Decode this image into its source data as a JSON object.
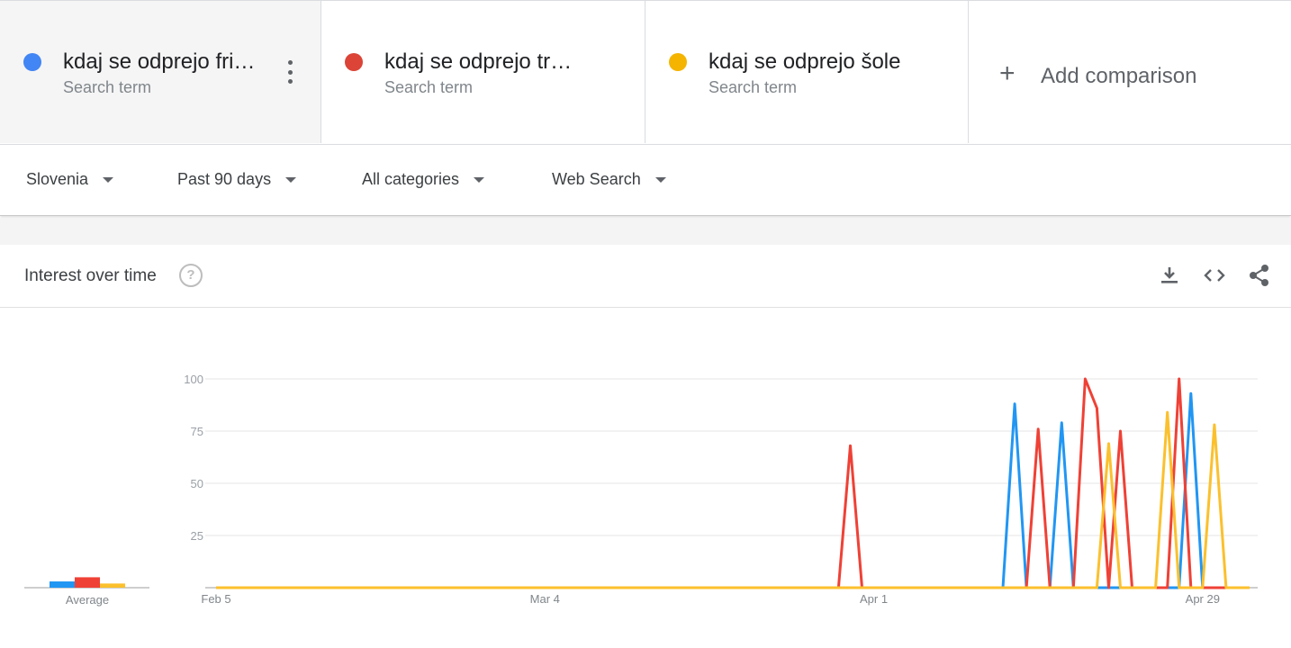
{
  "terms": [
    {
      "label": "kdaj se odprejo frizerji",
      "display": "kdaj se odprejo fri…",
      "sub": "Search term",
      "color": "#4285f4"
    },
    {
      "label": "kdaj se odprejo trgovine",
      "display": "kdaj se odprejo trg…",
      "sub": "Search term",
      "color": "#db4437"
    },
    {
      "label": "kdaj se odprejo šole",
      "display": "kdaj se odprejo šole",
      "sub": "Search term",
      "color": "#f4b400"
    }
  ],
  "add_comparison": "Add comparison",
  "filters": {
    "region": "Slovenia",
    "period": "Past 90 days",
    "category": "All categories",
    "search_type": "Web Search"
  },
  "panel": {
    "title": "Interest over time",
    "help_symbol": "?"
  },
  "icons": [
    "download-icon",
    "embed-code-icon",
    "share-icon",
    "help-icon",
    "more-vert-icon",
    "plus-icon"
  ],
  "chart_data": {
    "type": "line",
    "x_start": "2020-02-05",
    "x_end": "2020-05-03",
    "x_tick_labels": [
      "Feb 5",
      "Mar 4",
      "Apr 1",
      "Apr 29"
    ],
    "y_tick_labels": [
      "100",
      "75",
      "50",
      "25"
    ],
    "ylim": [
      0,
      100
    ],
    "grid": true,
    "average_label": "Average",
    "series": [
      {
        "color": "#2196f3",
        "average": 3,
        "values": {
          "2020-04-12": 0,
          "2020-04-13": 88,
          "2020-04-14": 0,
          "2020-04-15": 0,
          "2020-04-16": 0,
          "2020-04-17": 79,
          "2020-04-18": 0,
          "2020-04-27": 0,
          "2020-04-28": 93,
          "2020-04-29": 0
        }
      },
      {
        "color": "#ef4136",
        "average": 5,
        "values": {
          "2020-03-29": 0,
          "2020-03-30": 68,
          "2020-03-31": 0,
          "2020-04-14": 0,
          "2020-04-15": 76,
          "2020-04-16": 0,
          "2020-04-17": 0,
          "2020-04-18": 0,
          "2020-04-19": 100,
          "2020-04-20": 86,
          "2020-04-21": 0,
          "2020-04-22": 75,
          "2020-04-23": 0,
          "2020-04-25": 0,
          "2020-04-26": 0,
          "2020-04-27": 100,
          "2020-04-28": 0
        }
      },
      {
        "color": "#fbc02d",
        "average": 2,
        "values": {
          "2020-04-20": 0,
          "2020-04-21": 69,
          "2020-04-22": 0,
          "2020-04-24": 0,
          "2020-04-25": 0,
          "2020-04-26": 84,
          "2020-04-27": 0,
          "2020-04-29": 0,
          "2020-04-30": 78,
          "2020-05-01": 0
        }
      }
    ]
  }
}
